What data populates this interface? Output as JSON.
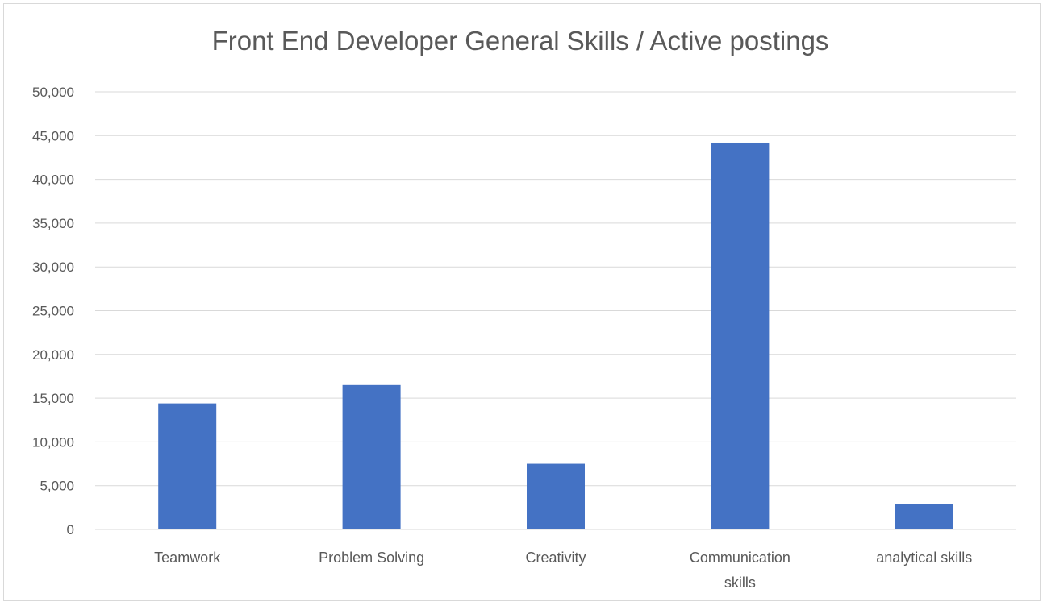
{
  "chart_data": {
    "type": "bar",
    "title": "Front End Developer General Skills / Active postings",
    "categories": [
      [
        "Teamwork"
      ],
      [
        "Problem Solving"
      ],
      [
        "Creativity"
      ],
      [
        "Communication",
        "skills"
      ],
      [
        "analytical skills"
      ]
    ],
    "values": [
      14400,
      16500,
      7500,
      44200,
      2900
    ],
    "ylim": [
      0,
      50000
    ],
    "yticks": [
      0,
      5000,
      10000,
      15000,
      20000,
      25000,
      30000,
      35000,
      40000,
      45000,
      50000
    ],
    "ytick_labels": [
      "0",
      "5,000",
      "10,000",
      "15,000",
      "20,000",
      "25,000",
      "30,000",
      "35,000",
      "40,000",
      "45,000",
      "50,000"
    ],
    "grid": true,
    "legend": "none",
    "bar_color": "#4472c4",
    "gridline_color": "#d9d9d9"
  }
}
